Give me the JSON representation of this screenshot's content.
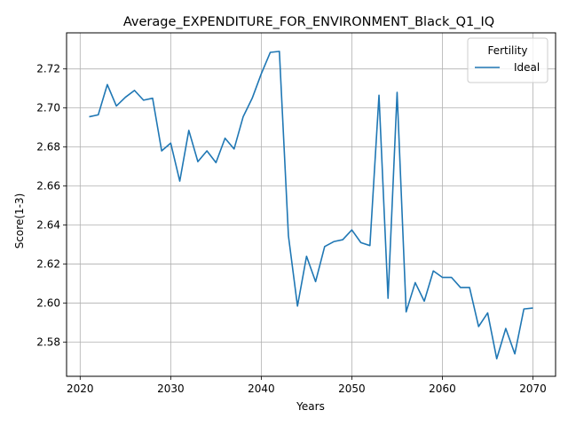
{
  "chart_data": {
    "type": "line",
    "title": "Average_EXPENDITURE_FOR_ENVIRONMENT_Black_Q1_IQ",
    "xlabel": "Years",
    "ylabel": "Score(1-3)",
    "xlim": [
      2018.5,
      2072.5
    ],
    "ylim": [
      2.5625,
      2.7385
    ],
    "xticks": [
      2020,
      2030,
      2040,
      2050,
      2060,
      2070
    ],
    "xtick_labels": [
      "2020",
      "2030",
      "2040",
      "2050",
      "2060",
      "2070"
    ],
    "yticks": [
      2.58,
      2.6,
      2.62,
      2.64,
      2.66,
      2.68,
      2.7,
      2.72
    ],
    "ytick_labels": [
      "2.58",
      "2.60",
      "2.62",
      "2.64",
      "2.66",
      "2.68",
      "2.70",
      "2.72"
    ],
    "grid": true,
    "legend": {
      "title": "Fertility",
      "placement": "top-right"
    },
    "series": [
      {
        "name": "Ideal",
        "color": "#1f77b4",
        "x": [
          2021,
          2022,
          2023,
          2024,
          2025,
          2026,
          2027,
          2028,
          2029,
          2030,
          2031,
          2032,
          2033,
          2034,
          2035,
          2036,
          2037,
          2038,
          2039,
          2040,
          2041,
          2042,
          2043,
          2044,
          2045,
          2046,
          2047,
          2048,
          2049,
          2050,
          2051,
          2052,
          2053,
          2054,
          2055,
          2056,
          2057,
          2058,
          2059,
          2060,
          2061,
          2062,
          2063,
          2064,
          2065,
          2066,
          2067,
          2068,
          2069,
          2070
        ],
        "y": [
          2.6955,
          2.6965,
          2.712,
          2.701,
          2.7055,
          2.709,
          2.704,
          2.705,
          2.678,
          2.682,
          2.6625,
          2.6885,
          2.6725,
          2.678,
          2.672,
          2.6845,
          2.679,
          2.6955,
          2.705,
          2.7175,
          2.7285,
          2.729,
          2.6345,
          2.5985,
          2.624,
          2.611,
          2.629,
          2.6315,
          2.6325,
          2.6375,
          2.631,
          2.6295,
          2.7065,
          2.6025,
          2.708,
          2.5955,
          2.6105,
          2.601,
          2.6165,
          2.6132,
          2.6132,
          2.608,
          2.608,
          2.588,
          2.595,
          2.5715,
          2.587,
          2.574,
          2.597,
          2.5975
        ]
      }
    ]
  }
}
